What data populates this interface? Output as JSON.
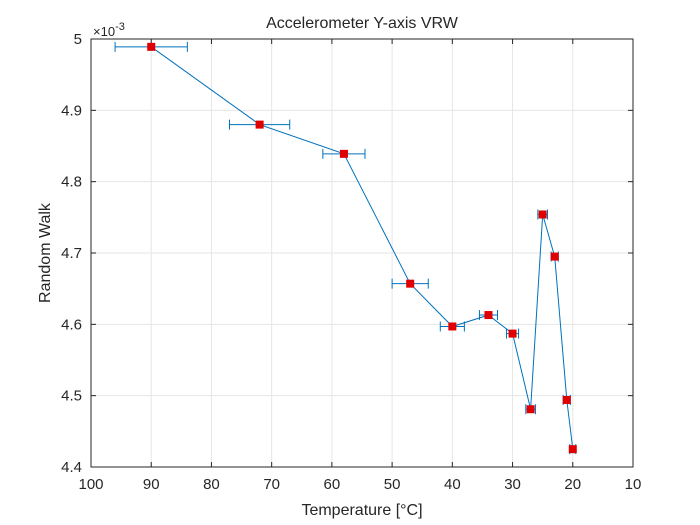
{
  "chart_data": {
    "type": "line",
    "title": "Accelerometer Y-axis VRW",
    "xlabel": "Temperature [°C]",
    "ylabel": "Random Walk",
    "y_multiplier_label": "×10",
    "y_multiplier_exponent": "-3",
    "x_reversed": true,
    "xlim": [
      10,
      100
    ],
    "ylim": [
      4.4,
      5.0
    ],
    "xticks": [
      100,
      90,
      80,
      70,
      60,
      50,
      40,
      30,
      20,
      10
    ],
    "xtick_labels": [
      "100",
      "90",
      "80",
      "70",
      "60",
      "50",
      "40",
      "30",
      "20",
      "10"
    ],
    "yticks": [
      4.4,
      4.5,
      4.6,
      4.7,
      4.8,
      4.9,
      5.0
    ],
    "ytick_labels": [
      "4.4",
      "4.5",
      "4.6",
      "4.7",
      "4.8",
      "4.9",
      "5"
    ],
    "grid": true,
    "series": [
      {
        "line_color": "#0072bd",
        "marker_color": "#e00000",
        "points": [
          {
            "x": 90,
            "y": 4.989,
            "xerr": 6
          },
          {
            "x": 72,
            "y": 4.88,
            "xerr": 5
          },
          {
            "x": 58,
            "y": 4.839,
            "xerr": 3.5
          },
          {
            "x": 47,
            "y": 4.657,
            "xerr": 3
          },
          {
            "x": 40,
            "y": 4.597,
            "xerr": 2
          },
          {
            "x": 34,
            "y": 4.613,
            "xerr": 1.5
          },
          {
            "x": 30,
            "y": 4.587,
            "xerr": 1
          },
          {
            "x": 27,
            "y": 4.481,
            "xerr": 0.8
          },
          {
            "x": 25,
            "y": 4.754,
            "xerr": 0.8
          },
          {
            "x": 23,
            "y": 4.695,
            "xerr": 0.6
          },
          {
            "x": 21,
            "y": 4.494,
            "xerr": 0.6
          },
          {
            "x": 20,
            "y": 4.425,
            "xerr": 0.5
          }
        ]
      }
    ]
  }
}
